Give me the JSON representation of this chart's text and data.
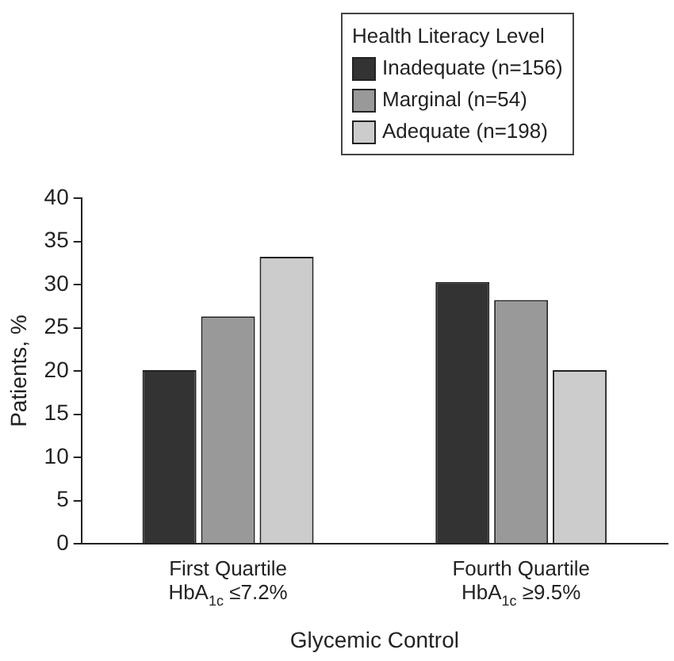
{
  "chart_data": {
    "type": "bar",
    "xlabel": "Glycemic Control",
    "ylabel": "Patients, %",
    "legend_title": "Health Literacy Level",
    "categories": [
      "First Quartile\nHbA$_{1c}$ ≤7.2%",
      "Fourth Quartile\nHbA$_{1c}$ ≥9.5%"
    ],
    "series": [
      {
        "name": "Inadequate (n=156)",
        "color": "#333333",
        "values": [
          20.1,
          30.3
        ]
      },
      {
        "name": "Marginal (n=54)",
        "color": "#999999",
        "values": [
          26.3,
          28.2
        ]
      },
      {
        "name": "Adequate (n=198)",
        "color": "#cccccc",
        "values": [
          33.2,
          20.1
        ]
      }
    ],
    "ylim": [
      0,
      40
    ],
    "yticks": [
      0,
      5,
      10,
      15,
      20,
      25,
      30,
      35,
      40
    ],
    "grid": false,
    "legend": "top right"
  }
}
